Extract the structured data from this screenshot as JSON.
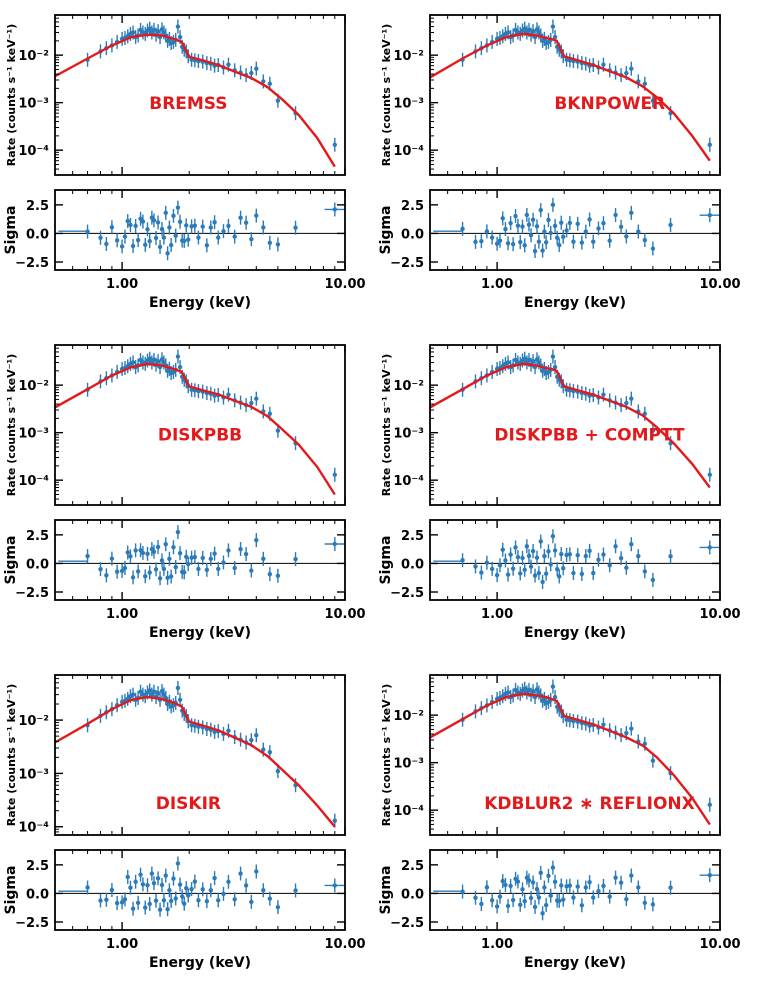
{
  "figure": {
    "model_color": "#e31a1c",
    "data_color": "#2b7bb9",
    "xlabel": "Energy (keV)",
    "rate_ylabel": "Rate (counts s⁻¹ keV⁻¹)",
    "sigma_ylabel": "Sigma",
    "x_tick_labels": [
      "1.00",
      "10.00"
    ],
    "rate_tick_labels": [
      "10⁻⁴",
      "10⁻³",
      "10⁻²"
    ],
    "sigma_tick_labels": [
      "2.5",
      "0.0",
      "−2.5"
    ]
  },
  "chart_data": [
    {
      "type": "scatter",
      "title": "BREMSS",
      "xlabel": "Energy (keV)",
      "xlim": [
        0.5,
        10
      ],
      "xscale": "log",
      "rate": {
        "ylabel": "Rate (counts s⁻¹ keV⁻¹)",
        "yscale": "log",
        "ylim": [
          3e-05,
          0.07
        ],
        "model": {
          "x": [
            0.5,
            0.7,
            0.9,
            1.1,
            1.3,
            1.5,
            1.65,
            1.75,
            1.85,
            2.0,
            2.3,
            2.7,
            3.2,
            3.8,
            4.5,
            5.2,
            6.2,
            7.5,
            9.0
          ],
          "y": [
            0.0036,
            0.0085,
            0.016,
            0.024,
            0.027,
            0.026,
            0.023,
            0.021,
            0.019,
            0.0092,
            0.0078,
            0.0062,
            0.0045,
            0.0033,
            0.0021,
            0.0012,
            0.00055,
            0.00018,
            4.5e-05
          ]
        }
      },
      "sigma": {
        "ylabel": "Sigma",
        "ylim": [
          -3.2,
          3.8
        ],
        "baseline": 0.0,
        "last_point": 2.1
      }
    },
    {
      "type": "scatter",
      "title": "BKNPOWER",
      "xlabel": "Energy (keV)",
      "xlim": [
        0.5,
        10
      ],
      "xscale": "log",
      "rate": {
        "ylabel": "Rate (counts s⁻¹ keV⁻¹)",
        "yscale": "log",
        "ylim": [
          3e-05,
          0.07
        ],
        "model": {
          "x": [
            0.5,
            0.7,
            0.9,
            1.1,
            1.3,
            1.5,
            1.65,
            1.75,
            1.85,
            2.0,
            2.3,
            2.7,
            3.2,
            3.8,
            4.5,
            5.2,
            6.2,
            7.5,
            9.0
          ],
          "y": [
            0.0034,
            0.0085,
            0.016,
            0.024,
            0.028,
            0.026,
            0.023,
            0.022,
            0.02,
            0.0094,
            0.0078,
            0.0062,
            0.0046,
            0.0034,
            0.0022,
            0.0013,
            0.0006,
            0.0002,
            6e-05
          ]
        }
      },
      "sigma": {
        "ylabel": "Sigma",
        "ylim": [
          -3.2,
          3.8
        ],
        "baseline": 0.0,
        "last_point": 1.6
      }
    },
    {
      "type": "scatter",
      "title": "DISKPBB",
      "xlabel": "Energy (keV)",
      "xlim": [
        0.5,
        10
      ],
      "xscale": "log",
      "rate": {
        "ylabel": "Rate (counts s⁻¹ keV⁻¹)",
        "yscale": "log",
        "ylim": [
          3e-05,
          0.07
        ],
        "model": {
          "x": [
            0.5,
            0.7,
            0.9,
            1.1,
            1.3,
            1.5,
            1.65,
            1.75,
            1.85,
            2.0,
            2.3,
            2.7,
            3.2,
            3.8,
            4.5,
            5.2,
            6.2,
            7.5,
            9.0
          ],
          "y": [
            0.0034,
            0.0082,
            0.016,
            0.024,
            0.028,
            0.026,
            0.023,
            0.021,
            0.019,
            0.0094,
            0.0078,
            0.0064,
            0.0047,
            0.0035,
            0.0022,
            0.0012,
            0.00056,
            0.00019,
            5e-05
          ]
        }
      },
      "sigma": {
        "ylabel": "Sigma",
        "ylim": [
          -3.2,
          3.8
        ],
        "baseline": 0.0,
        "last_point": 1.7
      }
    },
    {
      "type": "scatter",
      "title": "DISKPBB + COMPTT",
      "xlabel": "Energy (keV)",
      "xlim": [
        0.5,
        10
      ],
      "xscale": "log",
      "rate": {
        "ylabel": "Rate (counts s⁻¹ keV⁻¹)",
        "yscale": "log",
        "ylim": [
          3e-05,
          0.07
        ],
        "model": {
          "x": [
            0.5,
            0.7,
            0.9,
            1.1,
            1.3,
            1.5,
            1.65,
            1.75,
            1.85,
            2.0,
            2.3,
            2.7,
            3.2,
            3.8,
            4.5,
            5.2,
            6.2,
            7.5,
            9.0
          ],
          "y": [
            0.0034,
            0.0082,
            0.016,
            0.024,
            0.028,
            0.026,
            0.023,
            0.022,
            0.02,
            0.0094,
            0.0078,
            0.0063,
            0.0047,
            0.0035,
            0.0023,
            0.0013,
            0.0006,
            0.00022,
            7e-05
          ]
        }
      },
      "sigma": {
        "ylabel": "Sigma",
        "ylim": [
          -3.2,
          3.8
        ],
        "baseline": 0.0,
        "last_point": 1.4
      }
    },
    {
      "type": "scatter",
      "title": "DISKIR",
      "xlabel": "Energy (keV)",
      "xlim": [
        0.5,
        10
      ],
      "xscale": "log",
      "rate": {
        "ylabel": "Rate (counts s⁻¹ keV⁻¹)",
        "yscale": "log",
        "ylim": [
          7e-05,
          0.07
        ],
        "model": {
          "x": [
            0.5,
            0.7,
            0.9,
            1.1,
            1.3,
            1.5,
            1.65,
            1.75,
            1.85,
            2.0,
            2.3,
            2.7,
            3.2,
            3.8,
            4.5,
            5.2,
            6.2,
            7.5,
            9.0
          ],
          "y": [
            0.0038,
            0.0085,
            0.016,
            0.024,
            0.027,
            0.025,
            0.022,
            0.02,
            0.018,
            0.0094,
            0.0079,
            0.0064,
            0.0047,
            0.0034,
            0.0021,
            0.0012,
            0.0006,
            0.00025,
            0.0001
          ]
        }
      },
      "sigma": {
        "ylabel": "Sigma",
        "ylim": [
          -3.2,
          3.8
        ],
        "baseline": 0.0,
        "last_point": 0.7
      }
    },
    {
      "type": "scatter",
      "title": "KDBLUR2 ∗ REFLIONX",
      "xlabel": "Energy (keV)",
      "xlim": [
        0.5,
        10
      ],
      "xscale": "log",
      "rate": {
        "ylabel": "Rate (counts s⁻¹ keV⁻¹)",
        "yscale": "log",
        "ylim": [
          3e-05,
          0.07
        ],
        "model": {
          "x": [
            0.5,
            0.7,
            0.9,
            1.1,
            1.3,
            1.5,
            1.65,
            1.75,
            1.85,
            2.0,
            2.3,
            2.7,
            3.2,
            3.8,
            4.5,
            5.2,
            6.2,
            7.5,
            9.0
          ],
          "y": [
            0.0034,
            0.0082,
            0.016,
            0.024,
            0.028,
            0.026,
            0.024,
            0.022,
            0.02,
            0.0096,
            0.008,
            0.0064,
            0.0047,
            0.0034,
            0.0023,
            0.0013,
            0.00055,
            0.00018,
            5e-05
          ]
        }
      },
      "sigma": {
        "ylabel": "Sigma",
        "ylim": [
          -3.2,
          3.8
        ],
        "baseline": 0.0,
        "last_point": 1.6
      }
    }
  ],
  "spectrum": {
    "x": [
      0.7,
      0.8,
      0.85,
      0.9,
      0.95,
      1.0,
      1.03,
      1.06,
      1.09,
      1.12,
      1.15,
      1.18,
      1.21,
      1.24,
      1.27,
      1.3,
      1.33,
      1.36,
      1.39,
      1.42,
      1.45,
      1.48,
      1.51,
      1.54,
      1.57,
      1.6,
      1.63,
      1.66,
      1.7,
      1.74,
      1.78,
      1.82,
      1.86,
      1.9,
      1.94,
      1.98,
      2.05,
      2.12,
      2.2,
      2.3,
      2.4,
      2.5,
      2.6,
      2.7,
      2.85,
      3.0,
      3.2,
      3.4,
      3.6,
      3.8,
      4.0,
      4.3,
      4.6,
      5.0,
      6.0,
      9.0
    ],
    "y": [
      0.008,
      0.012,
      0.014,
      0.016,
      0.019,
      0.022,
      0.023,
      0.025,
      0.028,
      0.03,
      0.024,
      0.026,
      0.034,
      0.03,
      0.028,
      0.033,
      0.036,
      0.03,
      0.034,
      0.027,
      0.032,
      0.024,
      0.035,
      0.03,
      0.026,
      0.02,
      0.022,
      0.018,
      0.019,
      0.021,
      0.04,
      0.024,
      0.015,
      0.013,
      0.012,
      0.0095,
      0.008,
      0.0078,
      0.0075,
      0.0073,
      0.0068,
      0.0066,
      0.006,
      0.0062,
      0.0055,
      0.0063,
      0.0048,
      0.0043,
      0.0038,
      0.0042,
      0.0052,
      0.0028,
      0.0025,
      0.0011,
      0.0006,
      0.00013
    ],
    "residuals": [
      0.4,
      -0.5,
      -0.8,
      0.3,
      -0.6,
      -0.9,
      -0.4,
      1.2,
      0.5,
      -1.1,
      0.9,
      -0.7,
      1.4,
      0.8,
      -1.0,
      0.6,
      -0.8,
      1.5,
      0.9,
      -0.4,
      1.2,
      -1.3,
      0.5,
      -0.6,
      1.8,
      -1.5,
      0.4,
      -0.9,
      1.3,
      -0.2,
      2.5,
      0.9,
      -0.5,
      -0.9,
      0.7,
      -0.3,
      0.5,
      0.8,
      -0.6,
      0.6,
      -0.8,
      0.4,
      1.1,
      -0.6,
      0.2,
      0.9,
      -0.4,
      1.5,
      0.7,
      -0.5,
      1.8,
      0.4,
      -0.7,
      -1.2,
      0.5,
      1.6
    ]
  }
}
